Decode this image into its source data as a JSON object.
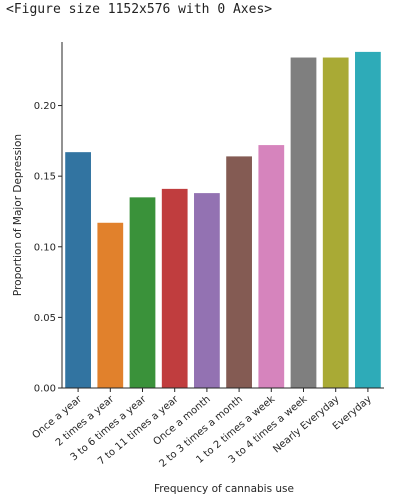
{
  "output_text": "<Figure size 1152x576 with 0 Axes>",
  "chart_data": {
    "type": "bar",
    "title": "",
    "xlabel": "Frequency of cannabis use",
    "ylabel": "Proportion of Major Depression",
    "ylim": [
      0,
      0.245
    ],
    "yticks": [
      "0.00",
      "0.05",
      "0.10",
      "0.15",
      "0.20"
    ],
    "grid": false,
    "legend": "none",
    "categories": [
      "Once a year",
      "2 times a year",
      "3 to 6 times a year",
      "7 to 11 times a year",
      "Once a month",
      "2 to 3 times a month",
      "1 to 2 times a week",
      "3 to 4 times a week",
      "Nearly Everyday",
      "Everyday"
    ],
    "values": [
      0.167,
      0.117,
      0.135,
      0.141,
      0.138,
      0.164,
      0.172,
      0.234,
      0.234,
      0.238
    ],
    "colors": [
      "#3274a1",
      "#e1812c",
      "#3a923a",
      "#c03d3e",
      "#9372b2",
      "#845b53",
      "#d684bd",
      "#7f7f7f",
      "#a9aa35",
      "#2eabb8"
    ]
  }
}
